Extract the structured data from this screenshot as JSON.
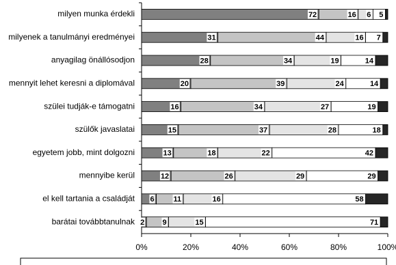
{
  "chart_data": {
    "type": "stacked-bar-horizontal",
    "categories": [
      "milyen munka érdekli",
      "milyenek a tanulmányi eredményei",
      "anyagilag önállósodjon",
      "mennyit lehet keresni a diplomával",
      "szülei tudják-e támogatni",
      "szülők javaslatai",
      "egyetem jobb, mint dolgozni",
      "mennyibe kerül",
      "el kell tartania a családját",
      "barátai továbbtanulnak"
    ],
    "series": [
      {
        "color": "#808080",
        "values": [
          72,
          31,
          28,
          20,
          16,
          15,
          13,
          12,
          6,
          2
        ]
      },
      {
        "color": "#c4c4c4",
        "values": [
          16,
          44,
          34,
          39,
          34,
          37,
          18,
          26,
          11,
          9
        ]
      },
      {
        "color": "#e4e4e4",
        "values": [
          6,
          16,
          19,
          24,
          27,
          28,
          22,
          29,
          16,
          15
        ]
      },
      {
        "color": "#ffffff",
        "values": [
          5,
          7,
          14,
          14,
          19,
          18,
          42,
          29,
          58,
          71
        ]
      },
      {
        "color": "#262626",
        "values": [
          1,
          2,
          5,
          3,
          4,
          2,
          5,
          4,
          9,
          3
        ]
      }
    ],
    "labeled_series": 4,
    "xlim": [
      0,
      100
    ],
    "xticks": [
      {
        "value": 0,
        "label": "0%"
      },
      {
        "value": 20,
        "label": "20%"
      },
      {
        "value": 40,
        "label": "40%"
      },
      {
        "value": 60,
        "label": "60%"
      },
      {
        "value": 80,
        "label": "80%"
      },
      {
        "value": 100,
        "label": "100%"
      }
    ]
  }
}
